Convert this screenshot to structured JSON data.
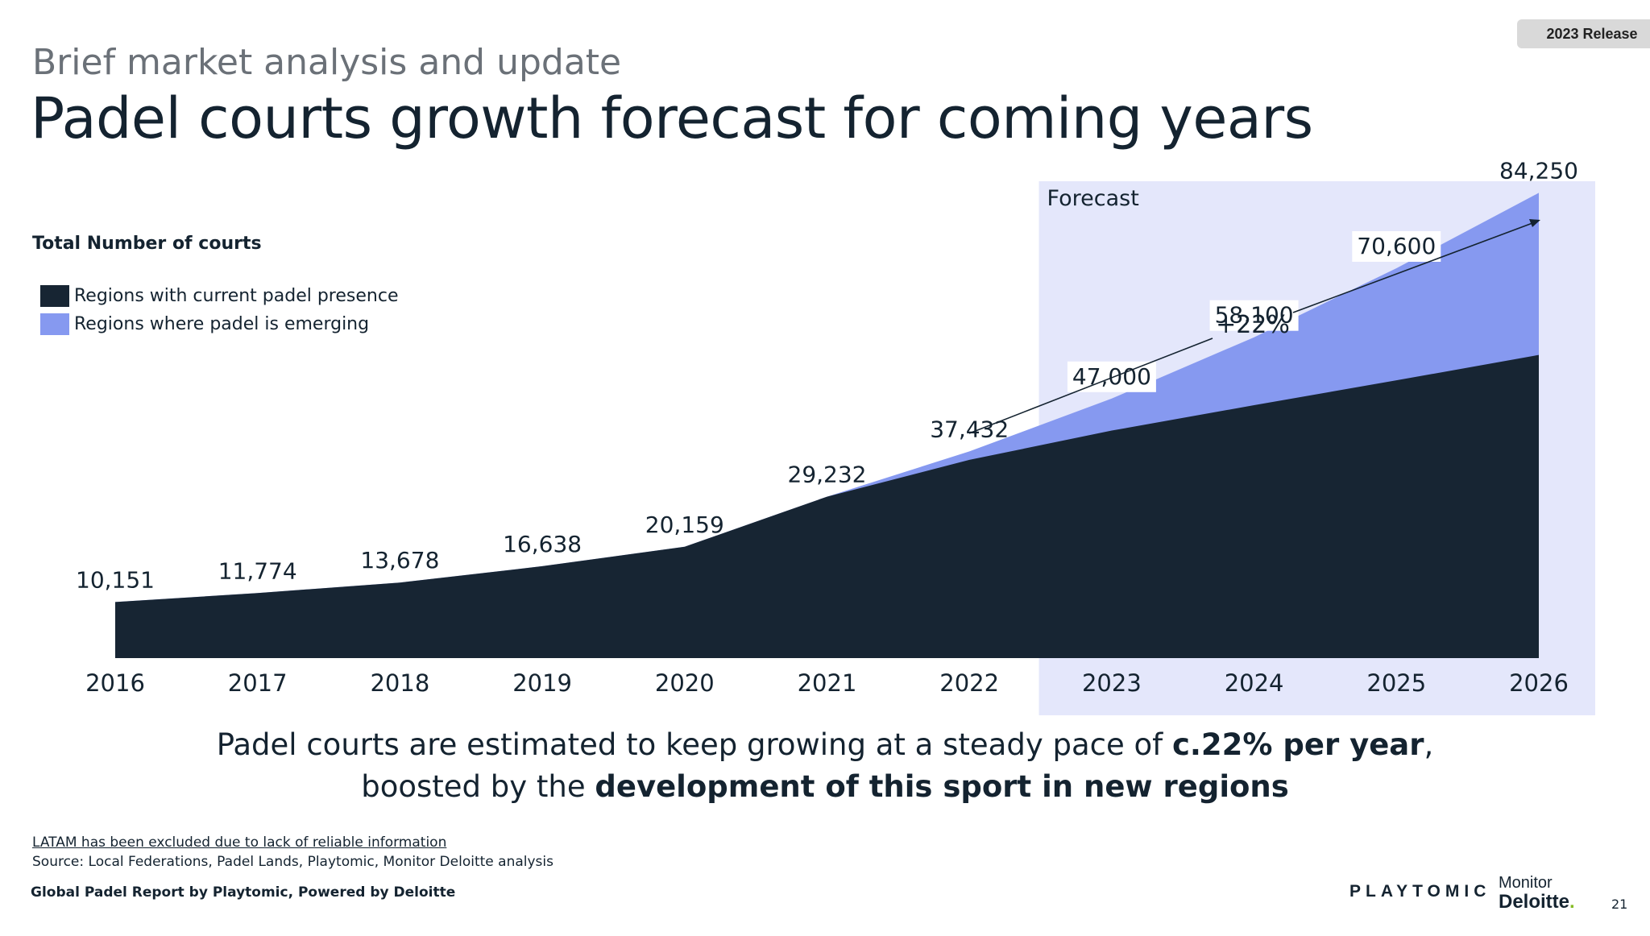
{
  "badge": "2023 Release",
  "header": {
    "subtitle": "Brief market analysis and update",
    "title": "Padel courts growth forecast for coming years"
  },
  "legend": {
    "title": "Total Number of courts",
    "items": [
      {
        "label": "Regions with current padel presence",
        "color": "#172533"
      },
      {
        "label": "Regions where padel is emerging",
        "color": "#8699f0"
      }
    ]
  },
  "chart_data": {
    "type": "area",
    "x": [
      "2016",
      "2017",
      "2018",
      "2019",
      "2020",
      "2021",
      "2022",
      "2023",
      "2024",
      "2025",
      "2026"
    ],
    "totals": [
      10151,
      11774,
      13678,
      16638,
      20159,
      29232,
      37432,
      47000,
      58100,
      70600,
      84250
    ],
    "total_labels": [
      "10,151",
      "11,774",
      "13,678",
      "16,638",
      "20,159",
      "29,232",
      "37,432",
      "47,000",
      "58,100",
      "70,600",
      "84,250"
    ],
    "series": [
      {
        "name": "Regions with current padel presence",
        "values": [
          10151,
          11774,
          13678,
          16638,
          20159,
          29232,
          35900,
          41200,
          45800,
          50300,
          54900
        ]
      },
      {
        "name": "Regions where padel is emerging",
        "values": [
          0,
          0,
          0,
          0,
          0,
          0,
          1532,
          5800,
          12300,
          20300,
          29350
        ]
      }
    ],
    "forecast_label": "Forecast",
    "forecast_start": "2023",
    "growth_annotation": "+22%",
    "colors": {
      "current": "#172533",
      "emerging": "#8699f0",
      "forecast_bg": "#e4e7fb"
    },
    "ylim": [
      0,
      90000
    ]
  },
  "conclusion": {
    "line1_plain": "Padel courts are estimated to keep growing at a steady pace of ",
    "line1_bold": "c.22% per year",
    "line1_end": ",",
    "line2_plain": "boosted by the ",
    "line2_bold": "development of this sport in new regions"
  },
  "notes": {
    "exclusion": "LATAM has been excluded due to lack of reliable information",
    "source": "Source: Local Federations, Padel Lands, Playtomic, Monitor Deloitte analysis"
  },
  "footer": {
    "text": "Global Padel Report by Playtomic,  Powered by Deloitte",
    "playtomic": "PLAYTOMIC",
    "monitor": "Monitor",
    "deloitte": "Deloitte",
    "deloitte_dot": ".",
    "page": "21"
  }
}
